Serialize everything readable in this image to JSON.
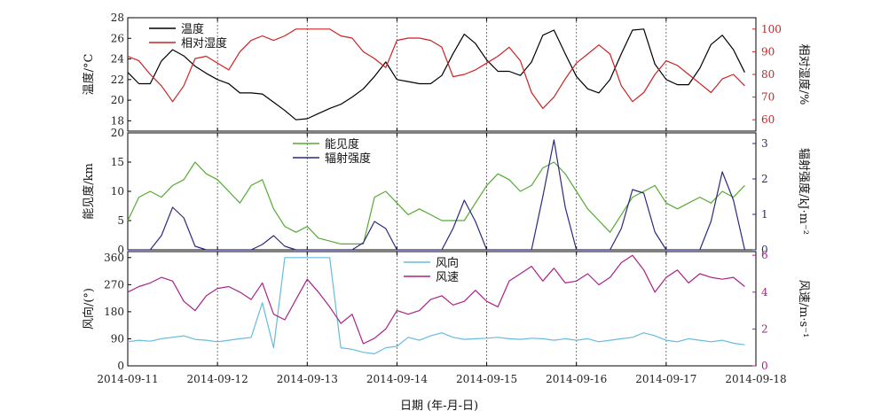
{
  "chart_data": [
    {
      "type": "line",
      "panel": "top",
      "x_start": "2014-09-11",
      "x_step_days": 0.125,
      "left_axis": {
        "label": "温度/°C",
        "ylim": [
          17,
          28
        ],
        "ticks": [
          18,
          20,
          22,
          24,
          26,
          28
        ],
        "color": "#000000"
      },
      "right_axis": {
        "label": "相对湿度/%",
        "ylim": [
          55,
          105
        ],
        "ticks": [
          60,
          70,
          80,
          90,
          100
        ],
        "color": "#cc2222"
      },
      "legend_position": "top-left",
      "series": [
        {
          "name": "温度",
          "axis": "left",
          "color": "#000000",
          "values": [
            22.7,
            21.6,
            21.6,
            23.8,
            24.9,
            24.3,
            23.3,
            22.6,
            22.0,
            21.6,
            20.7,
            20.7,
            20.6,
            19.8,
            19.0,
            18.1,
            18.2,
            18.7,
            19.2,
            19.6,
            20.3,
            21.1,
            22.3,
            23.7,
            22.0,
            21.8,
            21.6,
            21.6,
            22.4,
            24.5,
            26.4,
            25.5,
            23.9,
            22.8,
            22.8,
            22.4,
            23.7,
            26.3,
            26.8,
            24.5,
            22.3,
            21.1,
            20.7,
            22.0,
            24.5,
            26.8,
            26.9,
            23.5,
            22.0,
            21.5,
            21.5,
            23.1,
            25.4,
            26.3,
            24.9,
            22.7
          ]
        },
        {
          "name": "相对湿度",
          "axis": "right",
          "color": "#cc2222",
          "values": [
            88,
            86,
            80,
            75,
            68,
            75,
            87,
            88,
            85,
            82,
            90,
            95,
            97,
            95,
            97,
            100,
            100,
            100,
            100,
            97,
            96,
            90,
            87,
            83,
            95,
            96,
            96,
            95,
            92,
            79,
            80,
            82,
            85,
            88,
            92,
            86,
            72,
            65,
            70,
            78,
            85,
            89,
            93,
            89,
            75,
            68,
            72,
            80,
            86,
            84,
            80,
            76,
            72,
            78,
            80,
            75
          ]
        }
      ]
    },
    {
      "type": "line",
      "panel": "middle",
      "x_start": "2014-09-11",
      "x_step_days": 0.125,
      "left_axis": {
        "label": "能见度/km",
        "ylim": [
          0,
          20
        ],
        "ticks": [
          0,
          5,
          10,
          15,
          20
        ],
        "color": "#000000"
      },
      "right_axis": {
        "label": "辐射强度/kJ·m⁻²",
        "ylim": [
          0,
          3.3
        ],
        "ticks": [
          0,
          1,
          2,
          3
        ],
        "color": "#2a2a80"
      },
      "legend_position": "top-center",
      "series": [
        {
          "name": "能见度",
          "axis": "left",
          "color": "#55aa33",
          "values": [
            5,
            9,
            10,
            9,
            11,
            12,
            15,
            13,
            12,
            10,
            8,
            11,
            12,
            7,
            4,
            3,
            4,
            2,
            1.5,
            1,
            1,
            1,
            9,
            10,
            8,
            6,
            7,
            6,
            5,
            5,
            5,
            8,
            11,
            13,
            12,
            10,
            11,
            14,
            15,
            13,
            10,
            7,
            5,
            3,
            6,
            9,
            10,
            11,
            8,
            7,
            8,
            9,
            8,
            10,
            9,
            11
          ]
        },
        {
          "name": "辐射强度",
          "axis": "right",
          "color": "#2a2a80",
          "values": [
            0,
            0,
            0,
            0.4,
            1.2,
            0.9,
            0.1,
            0,
            0,
            0,
            0,
            0,
            0.15,
            0.4,
            0.1,
            0,
            0,
            0,
            0,
            0,
            0,
            0.2,
            0.8,
            0.6,
            0,
            0,
            0,
            0,
            0,
            0.6,
            1.4,
            0.8,
            0,
            0,
            0,
            0,
            0,
            1.5,
            3.1,
            1.2,
            0,
            0,
            0,
            0,
            0.6,
            1.7,
            1.6,
            0.5,
            0,
            0,
            0,
            0,
            0.8,
            2.2,
            1.4,
            0
          ]
        }
      ]
    },
    {
      "type": "line",
      "panel": "bottom",
      "x_start": "2014-09-11",
      "x_step_days": 0.125,
      "left_axis": {
        "label": "风向/(°)",
        "ylim": [
          0,
          380
        ],
        "ticks": [
          0,
          90,
          180,
          270,
          360
        ],
        "color": "#000000"
      },
      "right_axis": {
        "label": "风速/m·s⁻¹",
        "ylim": [
          0,
          6.2
        ],
        "ticks": [
          0,
          2,
          4,
          6
        ],
        "color": "#aa2288"
      },
      "x_label": "日期 (年-月-日)",
      "x_ticks": [
        "2014-09-11",
        "2014-09-12",
        "2014-09-13",
        "2014-09-14",
        "2014-09-15",
        "2014-09-16",
        "2014-09-17",
        "2014-09-18"
      ],
      "legend_position": "top-center",
      "series": [
        {
          "name": "风向",
          "axis": "left",
          "color": "#66bbdd",
          "values": [
            80,
            85,
            82,
            90,
            95,
            100,
            88,
            85,
            80,
            85,
            90,
            95,
            210,
            60,
            360,
            360,
            360,
            360,
            360,
            60,
            55,
            45,
            40,
            60,
            65,
            95,
            85,
            100,
            110,
            95,
            88,
            90,
            92,
            95,
            90,
            88,
            92,
            90,
            85,
            90,
            85,
            90,
            80,
            85,
            90,
            95,
            110,
            100,
            85,
            80,
            90,
            85,
            80,
            85,
            75,
            70
          ]
        },
        {
          "name": "风速",
          "axis": "right",
          "color": "#aa2288",
          "values": [
            4.0,
            4.3,
            4.5,
            4.8,
            4.6,
            3.5,
            3.0,
            3.8,
            4.2,
            4.3,
            4.0,
            3.6,
            4.5,
            2.8,
            2.5,
            3.6,
            4.7,
            4.0,
            3.2,
            2.3,
            2.8,
            1.2,
            1.5,
            2.0,
            3.0,
            2.8,
            3.0,
            3.6,
            3.8,
            3.3,
            3.5,
            4.1,
            3.5,
            3.2,
            4.6,
            5.0,
            5.4,
            4.6,
            5.3,
            4.5,
            4.6,
            5.0,
            4.4,
            4.8,
            5.6,
            6.0,
            5.2,
            4.0,
            4.8,
            5.2,
            4.5,
            5.0,
            4.8,
            4.7,
            4.8,
            4.3
          ]
        }
      ]
    }
  ]
}
